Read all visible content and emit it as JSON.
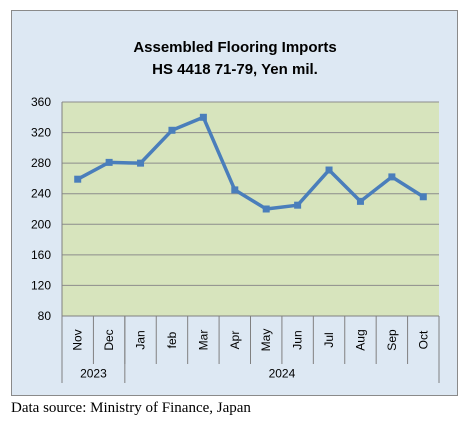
{
  "chart_data": {
    "type": "line",
    "title": [
      "Assembled Flooring Imports",
      "HS 4418 71-79, Yen mil."
    ],
    "categories": [
      "Nov",
      "Dec",
      "Jan",
      "feb",
      "Mar",
      "Apr",
      "May",
      "Jun",
      "Jul",
      "Aug",
      "Sep",
      "Oct"
    ],
    "category_groups": [
      {
        "label": "2023",
        "span": 2
      },
      {
        "label": "2024",
        "span": 10
      }
    ],
    "series": [
      {
        "values": [
          259,
          281,
          280,
          323,
          340,
          245,
          220,
          225,
          271,
          230,
          262,
          236
        ]
      }
    ],
    "ylim": [
      80,
      360
    ],
    "yticks": [
      80,
      120,
      160,
      200,
      240,
      280,
      320,
      360
    ],
    "grid": true,
    "colors": {
      "line": "#4a7ebb",
      "plot_area": "#d7e4bd",
      "chart_area": "#dde8f3",
      "gridline": "#8c8c8c"
    }
  },
  "source_note": "Data source: Ministry of Finance, Japan"
}
